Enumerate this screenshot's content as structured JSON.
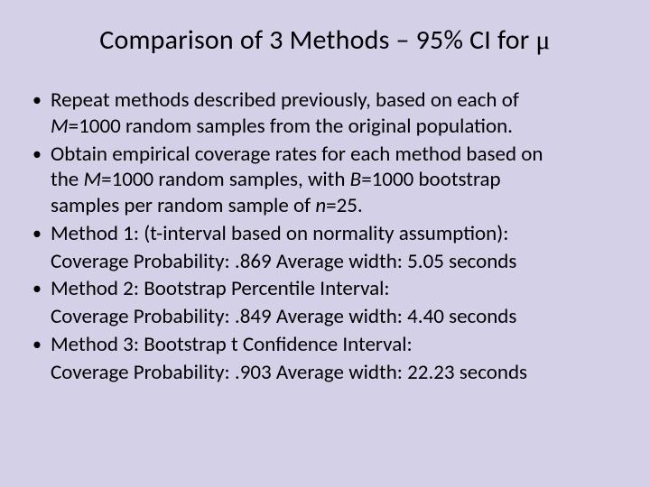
{
  "title_prefix": "Comparison of 3 Methods – 95% CI for ",
  "title_mu": "μ",
  "bullets": [
    {
      "line1a": "Repeat methods described previously, based on each of",
      "line2a": "M",
      "line2b": "=1000 random samples from the original population."
    },
    {
      "line1a": "Obtain empirical coverage rates for each method based on",
      "line2a": "the ",
      "line2b": "M",
      "line2c": "=1000 random samples, with ",
      "line2d": "B",
      "line2e": "=1000 bootstrap",
      "line3a": "samples per random sample of ",
      "line3b": "n",
      "line3c": "=25."
    },
    {
      "line1a": "Method 1: (t-interval based on normality assumption):",
      "sub": "Coverage Probability: .869   Average width: 5.05 seconds"
    },
    {
      "line1a": "Method 2: Bootstrap Percentile Interval:",
      "sub": "Coverage Probability: .849   Average width: 4.40 seconds"
    },
    {
      "line1a": "Method 3: Bootstrap t Confidence Interval:",
      "sub": "Coverage Probability: .903   Average width: 22.23 seconds"
    }
  ],
  "colors": {
    "background": "#d4d0e8",
    "text": "#000000"
  },
  "fontsize": {
    "title": 30,
    "body": 23
  }
}
